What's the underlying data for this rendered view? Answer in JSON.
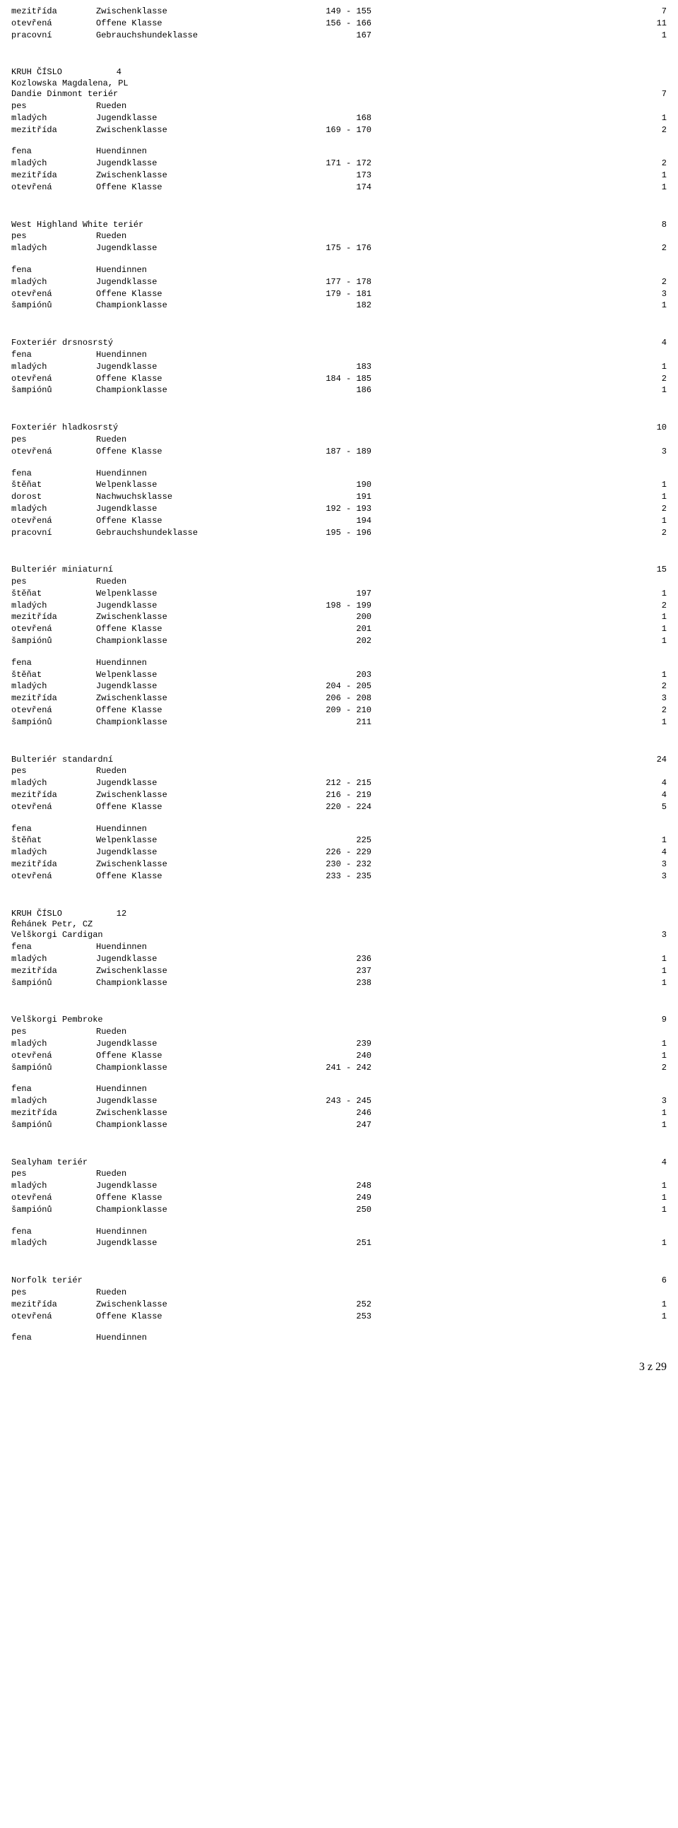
{
  "top_rows": [
    {
      "c1": "mezitřída",
      "c2": "Zwischenklasse",
      "c3": "149 - 155",
      "c4": "7"
    },
    {
      "c1": "otevřená",
      "c2": "Offene Klasse",
      "c3": "156 - 166",
      "c4": "11"
    },
    {
      "c1": "pracovní",
      "c2": "Gebrauchshundeklasse",
      "c3": "167",
      "c4": "1"
    }
  ],
  "ring1": {
    "label": "KRUH ČÍSLO",
    "num": "4",
    "judge": "Kozlowska Magdalena, PL"
  },
  "breeds1": [
    {
      "name": "Dandie Dinmont teriér",
      "count": "7",
      "groups": [
        {
          "header": {
            "c1": "pes",
            "c2": "Rueden"
          },
          "rows": [
            {
              "c1": "mladých",
              "c2": "Jugendklasse",
              "c3": "168",
              "c4": "1"
            },
            {
              "c1": "mezitřída",
              "c2": "Zwischenklasse",
              "c3": "169 - 170",
              "c4": "2"
            }
          ]
        },
        {
          "header": {
            "c1": "fena",
            "c2": "Huendinnen"
          },
          "rows": [
            {
              "c1": "mladých",
              "c2": "Jugendklasse",
              "c3": "171 - 172",
              "c4": "2"
            },
            {
              "c1": "mezitřída",
              "c2": "Zwischenklasse",
              "c3": "173",
              "c4": "1"
            },
            {
              "c1": "otevřená",
              "c2": "Offene Klasse",
              "c3": "174",
              "c4": "1"
            }
          ]
        }
      ]
    },
    {
      "name": "West Highland White teriér",
      "count": "8",
      "groups": [
        {
          "header": {
            "c1": "pes",
            "c2": "Rueden"
          },
          "rows": [
            {
              "c1": "mladých",
              "c2": "Jugendklasse",
              "c3": "175 - 176",
              "c4": "2"
            }
          ]
        },
        {
          "header": {
            "c1": "fena",
            "c2": "Huendinnen"
          },
          "rows": [
            {
              "c1": "mladých",
              "c2": "Jugendklasse",
              "c3": "177 - 178",
              "c4": "2"
            },
            {
              "c1": "otevřená",
              "c2": "Offene Klasse",
              "c3": "179 - 181",
              "c4": "3"
            },
            {
              "c1": "šampiónů",
              "c2": "Championklasse",
              "c3": "182",
              "c4": "1"
            }
          ]
        }
      ]
    },
    {
      "name": "Foxteriér drsnosrstý",
      "count": "4",
      "groups": [
        {
          "header": {
            "c1": "fena",
            "c2": "Huendinnen"
          },
          "rows": [
            {
              "c1": "mladých",
              "c2": "Jugendklasse",
              "c3": "183",
              "c4": "1"
            },
            {
              "c1": "otevřená",
              "c2": "Offene Klasse",
              "c3": "184 - 185",
              "c4": "2"
            },
            {
              "c1": "šampiónů",
              "c2": "Championklasse",
              "c3": "186",
              "c4": "1"
            }
          ]
        }
      ]
    },
    {
      "name": "Foxteriér hladkosrstý",
      "count": "10",
      "groups": [
        {
          "header": {
            "c1": "pes",
            "c2": "Rueden"
          },
          "rows": [
            {
              "c1": "otevřená",
              "c2": "Offene Klasse",
              "c3": "187 - 189",
              "c4": "3"
            }
          ]
        },
        {
          "header": {
            "c1": "fena",
            "c2": "Huendinnen"
          },
          "rows": [
            {
              "c1": "štěňat",
              "c2": "Welpenklasse",
              "c3": "190",
              "c4": "1"
            },
            {
              "c1": "dorost",
              "c2": "Nachwuchsklasse",
              "c3": "191",
              "c4": "1"
            },
            {
              "c1": "mladých",
              "c2": "Jugendklasse",
              "c3": "192 - 193",
              "c4": "2"
            },
            {
              "c1": "otevřená",
              "c2": "Offene Klasse",
              "c3": "194",
              "c4": "1"
            },
            {
              "c1": "pracovní",
              "c2": "Gebrauchshundeklasse",
              "c3": "195 - 196",
              "c4": "2"
            }
          ]
        }
      ]
    },
    {
      "name": "Bulteriér miniaturní",
      "count": "15",
      "groups": [
        {
          "header": {
            "c1": "pes",
            "c2": "Rueden"
          },
          "rows": [
            {
              "c1": "štěňat",
              "c2": "Welpenklasse",
              "c3": "197",
              "c4": "1"
            },
            {
              "c1": "mladých",
              "c2": "Jugendklasse",
              "c3": "198 - 199",
              "c4": "2"
            },
            {
              "c1": "mezitřída",
              "c2": "Zwischenklasse",
              "c3": "200",
              "c4": "1"
            },
            {
              "c1": "otevřená",
              "c2": "Offene Klasse",
              "c3": "201",
              "c4": "1"
            },
            {
              "c1": "šampiónů",
              "c2": "Championklasse",
              "c3": "202",
              "c4": "1"
            }
          ]
        },
        {
          "header": {
            "c1": "fena",
            "c2": "Huendinnen"
          },
          "rows": [
            {
              "c1": "štěňat",
              "c2": "Welpenklasse",
              "c3": "203",
              "c4": "1"
            },
            {
              "c1": "mladých",
              "c2": "Jugendklasse",
              "c3": "204 - 205",
              "c4": "2"
            },
            {
              "c1": "mezitřída",
              "c2": "Zwischenklasse",
              "c3": "206 - 208",
              "c4": "3"
            },
            {
              "c1": "otevřená",
              "c2": "Offene Klasse",
              "c3": "209 - 210",
              "c4": "2"
            },
            {
              "c1": "šampiónů",
              "c2": "Championklasse",
              "c3": "211",
              "c4": "1"
            }
          ]
        }
      ]
    },
    {
      "name": "Bulteriér standardní",
      "count": "24",
      "groups": [
        {
          "header": {
            "c1": "pes",
            "c2": "Rueden"
          },
          "rows": [
            {
              "c1": "mladých",
              "c2": "Jugendklasse",
              "c3": "212 - 215",
              "c4": "4"
            },
            {
              "c1": "mezitřída",
              "c2": "Zwischenklasse",
              "c3": "216 - 219",
              "c4": "4"
            },
            {
              "c1": "otevřená",
              "c2": "Offene Klasse",
              "c3": "220 - 224",
              "c4": "5"
            }
          ]
        },
        {
          "header": {
            "c1": "fena",
            "c2": "Huendinnen"
          },
          "rows": [
            {
              "c1": "štěňat",
              "c2": "Welpenklasse",
              "c3": "225",
              "c4": "1"
            },
            {
              "c1": "mladých",
              "c2": "Jugendklasse",
              "c3": "226 - 229",
              "c4": "4"
            },
            {
              "c1": "mezitřída",
              "c2": "Zwischenklasse",
              "c3": "230 - 232",
              "c4": "3"
            },
            {
              "c1": "otevřená",
              "c2": "Offene Klasse",
              "c3": "233 - 235",
              "c4": "3"
            }
          ]
        }
      ]
    }
  ],
  "ring2": {
    "label": "KRUH ČÍSLO",
    "num": "12",
    "judge": "Řehánek Petr, CZ"
  },
  "breeds2": [
    {
      "name": "Velškorgi Cardigan",
      "count": "3",
      "groups": [
        {
          "header": {
            "c1": "fena",
            "c2": "Huendinnen"
          },
          "rows": [
            {
              "c1": "mladých",
              "c2": "Jugendklasse",
              "c3": "236",
              "c4": "1"
            },
            {
              "c1": "mezitřída",
              "c2": "Zwischenklasse",
              "c3": "237",
              "c4": "1"
            },
            {
              "c1": "šampiónů",
              "c2": "Championklasse",
              "c3": "238",
              "c4": "1"
            }
          ]
        }
      ]
    },
    {
      "name": "Velškorgi Pembroke",
      "count": "9",
      "groups": [
        {
          "header": {
            "c1": "pes",
            "c2": "Rueden"
          },
          "rows": [
            {
              "c1": "mladých",
              "c2": "Jugendklasse",
              "c3": "239",
              "c4": "1"
            },
            {
              "c1": "otevřená",
              "c2": "Offene Klasse",
              "c3": "240",
              "c4": "1"
            },
            {
              "c1": "šampiónů",
              "c2": "Championklasse",
              "c3": "241 - 242",
              "c4": "2"
            }
          ]
        },
        {
          "header": {
            "c1": "fena",
            "c2": "Huendinnen"
          },
          "rows": [
            {
              "c1": "mladých",
              "c2": "Jugendklasse",
              "c3": "243 - 245",
              "c4": "3"
            },
            {
              "c1": "mezitřída",
              "c2": "Zwischenklasse",
              "c3": "246",
              "c4": "1"
            },
            {
              "c1": "šampiónů",
              "c2": "Championklasse",
              "c3": "247",
              "c4": "1"
            }
          ]
        }
      ]
    },
    {
      "name": "Sealyham teriér",
      "count": "4",
      "groups": [
        {
          "header": {
            "c1": "pes",
            "c2": "Rueden"
          },
          "rows": [
            {
              "c1": "mladých",
              "c2": "Jugendklasse",
              "c3": "248",
              "c4": "1"
            },
            {
              "c1": "otevřená",
              "c2": "Offene Klasse",
              "c3": "249",
              "c4": "1"
            },
            {
              "c1": "šampiónů",
              "c2": "Championklasse",
              "c3": "250",
              "c4": "1"
            }
          ]
        },
        {
          "header": {
            "c1": "fena",
            "c2": "Huendinnen"
          },
          "rows": [
            {
              "c1": "mladých",
              "c2": "Jugendklasse",
              "c3": "251",
              "c4": "1"
            }
          ]
        }
      ]
    },
    {
      "name": "Norfolk teriér",
      "count": "6",
      "groups": [
        {
          "header": {
            "c1": "pes",
            "c2": "Rueden"
          },
          "rows": [
            {
              "c1": "mezitřída",
              "c2": "Zwischenklasse",
              "c3": "252",
              "c4": "1"
            },
            {
              "c1": "otevřená",
              "c2": "Offene Klasse",
              "c3": "253",
              "c4": "1"
            }
          ]
        },
        {
          "header": {
            "c1": "fena",
            "c2": "Huendinnen"
          },
          "rows": []
        }
      ]
    }
  ],
  "footer": "3 z 29"
}
